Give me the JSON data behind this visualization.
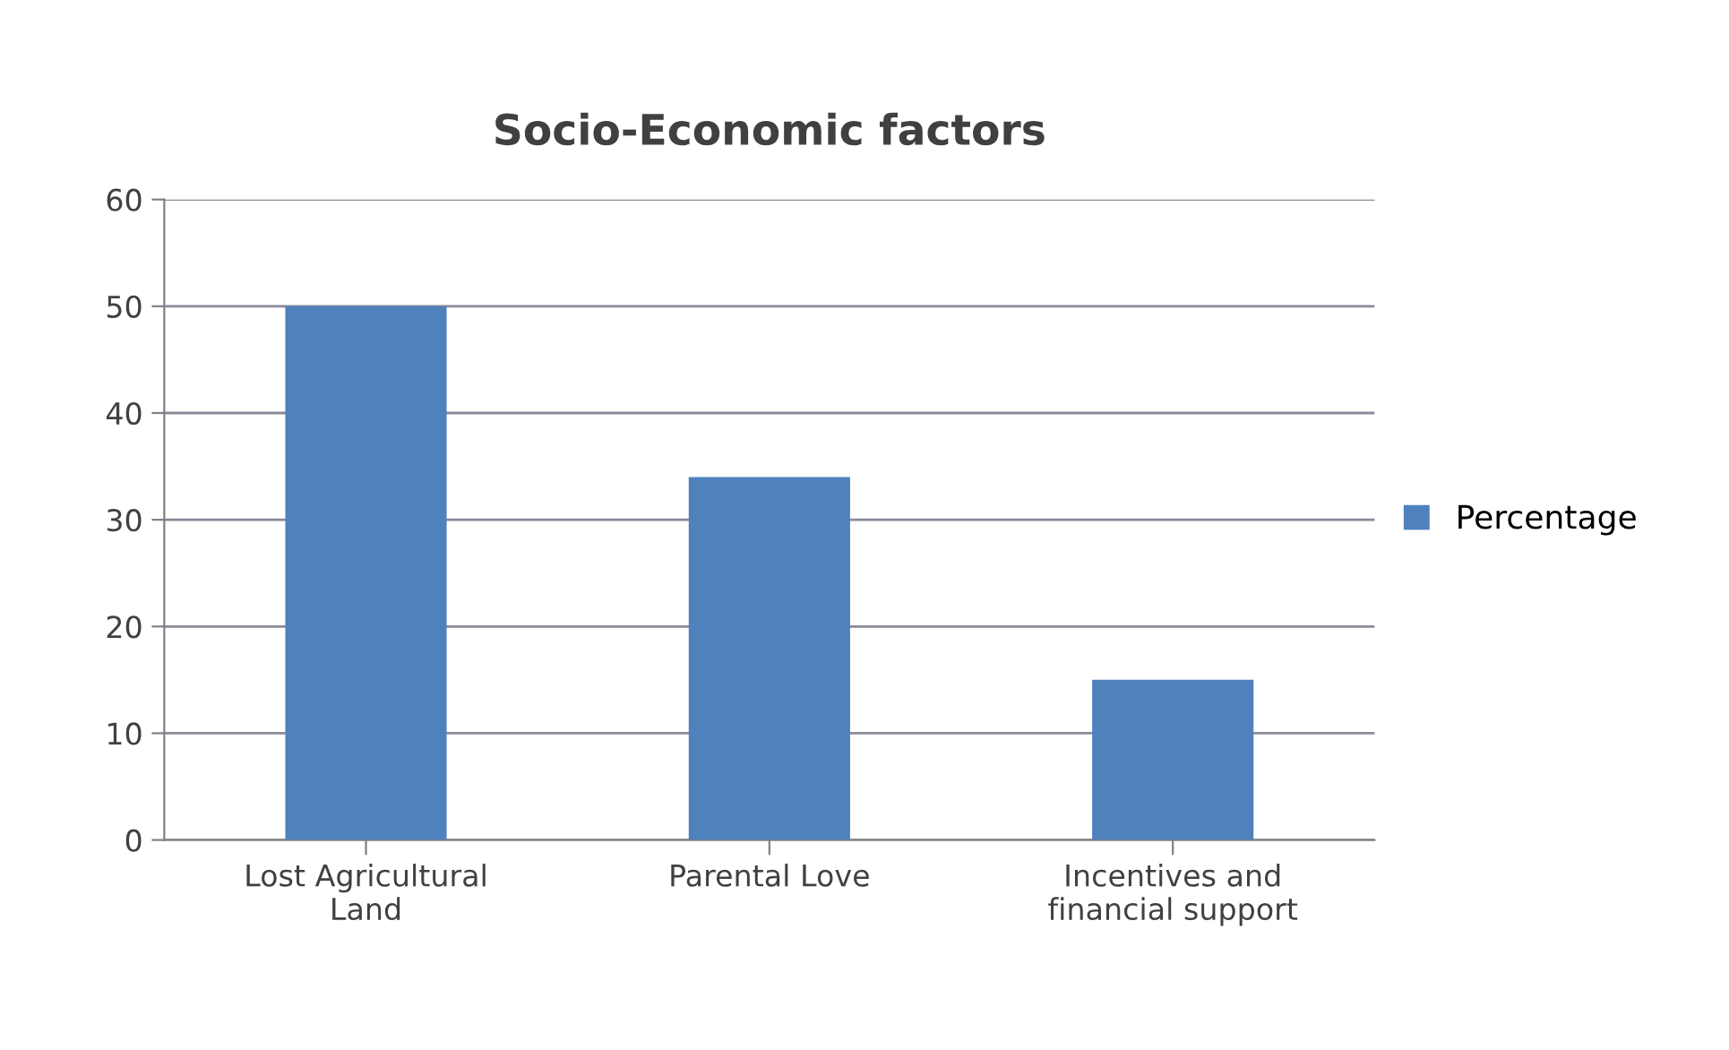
{
  "chart_data": {
    "type": "bar",
    "title": "Socio-Economic factors",
    "categories": [
      "Lost Agricultural\nLand",
      "Parental Love",
      "Incentives and\nfinancial support"
    ],
    "series": [
      {
        "name": "Percentage",
        "color": "#4f81bd",
        "values": [
          50,
          34,
          15
        ]
      }
    ],
    "ylim": [
      0,
      60
    ],
    "yticks": [
      0,
      10,
      20,
      30,
      40,
      50,
      60
    ],
    "grid": "y",
    "legend": "right"
  }
}
